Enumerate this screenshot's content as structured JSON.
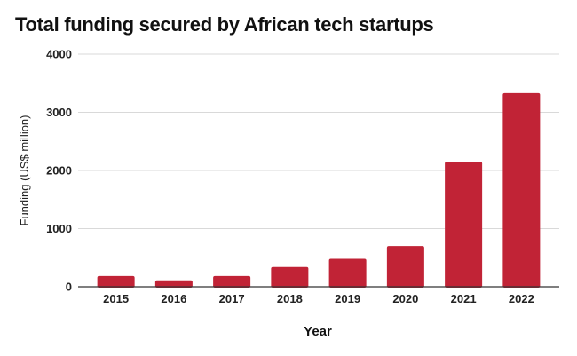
{
  "chart_data": {
    "type": "bar",
    "title": "Total funding secured by African tech startups",
    "xlabel": "Year",
    "ylabel": "Funding (US$ million)",
    "categories": [
      "2015",
      "2016",
      "2017",
      "2018",
      "2019",
      "2020",
      "2021",
      "2022"
    ],
    "values": [
      185,
      110,
      185,
      340,
      480,
      700,
      2150,
      3330
    ],
    "ylim": [
      0,
      4000
    ],
    "yticks": [
      "0",
      "1000",
      "2000",
      "3000",
      "4000"
    ],
    "grid": true,
    "legend": "none",
    "bar_color": "#c12336"
  }
}
